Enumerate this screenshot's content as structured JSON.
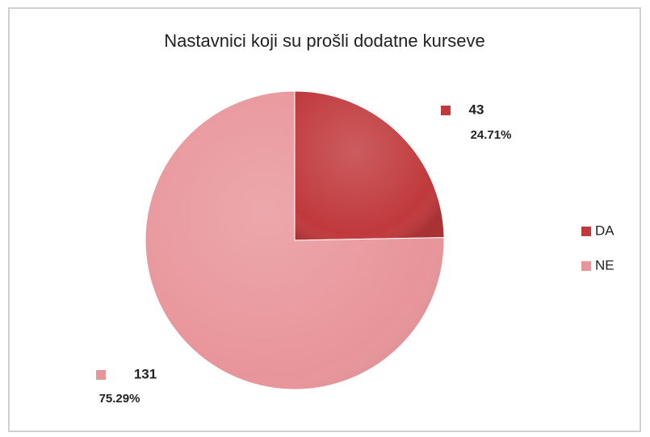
{
  "chart_data": {
    "type": "pie",
    "title": "Nastavnici koji su prošli dodatne kurseve",
    "categories": [
      "DA",
      "NE"
    ],
    "values": [
      43,
      131
    ],
    "percentage_labels": [
      "24.71%",
      "75.29%"
    ],
    "colors": [
      "#c0393c",
      "#e8959a"
    ],
    "legend": "right"
  }
}
